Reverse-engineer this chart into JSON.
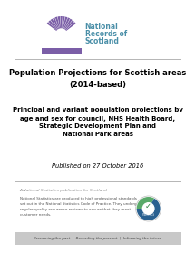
{
  "title_main": "Population Projections for Scottish areas\n(2014-based)",
  "subtitle": "Principal and variant population projections by\nage and sex for council, NHS Health Board,\nStrategic Development Plan and\nNational Park areas",
  "published": "Published on 27 October 2016",
  "ns_label": "A National Statistics publication for Scotland",
  "ns_body": "National Statistics are produced to high professional standards\nset out in the National Statistics Code of Practice. They undergo\nregular quality assurance reviews to ensure that they meet\ncustomer needs.",
  "footer": "Preserving the past  |  Recording the present  |  Informing the future",
  "bg_color": "#ffffff",
  "logo_purple": "#7b5ea7",
  "logo_teal": "#4a8fa8",
  "divider_color": "#aaaaaa",
  "title_color": "#000000",
  "ns_label_color": "#888888",
  "ns_body_color": "#555555",
  "footer_bg": "#c8c8c8",
  "footer_color": "#444444"
}
